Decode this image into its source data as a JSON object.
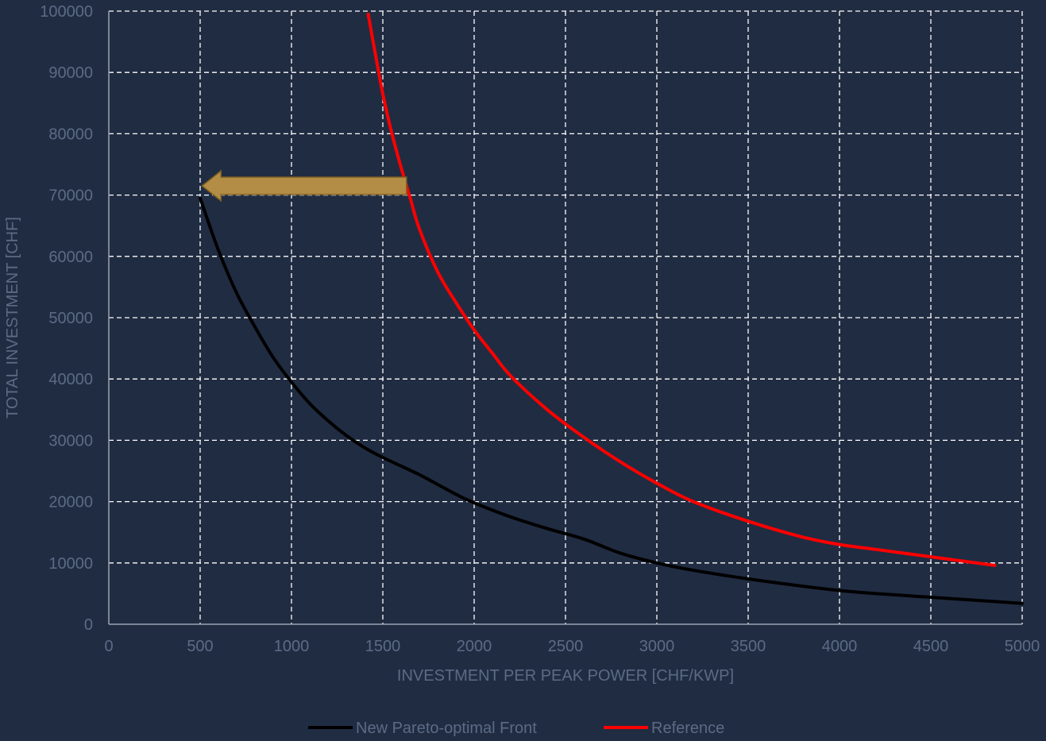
{
  "colors": {
    "background": "#202c42",
    "grid": "#ffffff",
    "axis": "#9aa3b1",
    "text": "#5b6b84",
    "series_black": "#000000",
    "series_red": "#ff0000",
    "arrow_fill": "#b38d45",
    "arrow_stroke": "#7a5c22"
  },
  "chart_data": {
    "type": "line",
    "title": "",
    "xlabel": "INVESTMENT PER PEAK POWER [CHF/KWP]",
    "ylabel": "TOTAL INVESTMENT [CHF]",
    "xlim": [
      0,
      5000
    ],
    "ylim": [
      0,
      100000
    ],
    "x_ticks": [
      0,
      500,
      1000,
      1500,
      2000,
      2500,
      3000,
      3500,
      4000,
      4500,
      5000
    ],
    "y_ticks": [
      0,
      10000,
      20000,
      30000,
      40000,
      50000,
      60000,
      70000,
      80000,
      90000,
      100000
    ],
    "x_tick_labels": [
      "0",
      "500",
      "1000",
      "1500",
      "2000",
      "2500",
      "3000",
      "3500",
      "4000",
      "4500",
      "5000"
    ],
    "y_tick_labels": [
      "0",
      "10000",
      "20000",
      "30000",
      "40000",
      "50000",
      "60000",
      "70000",
      "80000",
      "90000",
      "100000"
    ],
    "grid": true,
    "grid_style": "dashed",
    "legend_position": "bottom",
    "series": [
      {
        "name": "New Pareto-optimal Front",
        "color": "#000000",
        "x": [
          500,
          600,
          700,
          800,
          900,
          1000,
          1100,
          1200,
          1300,
          1400,
          1500,
          1600,
          1700,
          1800,
          1900,
          2000,
          2200,
          2400,
          2600,
          2800,
          3000,
          3200,
          3500,
          3800,
          4000,
          4200,
          4500,
          4800,
          5000
        ],
        "y": [
          69500,
          61000,
          54000,
          48500,
          43500,
          39500,
          36000,
          33200,
          30800,
          28800,
          27200,
          25800,
          24400,
          22800,
          21200,
          19800,
          17500,
          15600,
          13900,
          11600,
          10000,
          8800,
          7400,
          6200,
          5500,
          5000,
          4400,
          3800,
          3400
        ]
      },
      {
        "name": "Reference",
        "color": "#ff0000",
        "x": [
          1420,
          1450,
          1500,
          1550,
          1600,
          1650,
          1700,
          1800,
          1900,
          2000,
          2100,
          2200,
          2400,
          2600,
          2800,
          3000,
          3200,
          3500,
          3800,
          4000,
          4200,
          4500,
          4850
        ],
        "y": [
          99500,
          94500,
          86500,
          80000,
          74500,
          69500,
          64500,
          57500,
          52500,
          48000,
          44200,
          40500,
          35000,
          30500,
          26500,
          23000,
          20000,
          16800,
          14200,
          13000,
          12200,
          11000,
          9600
        ]
      }
    ],
    "annotations": [
      {
        "type": "arrow",
        "direction": "left",
        "color": "#b38d45",
        "x_start": 1630,
        "x_end": 510,
        "y": 71500
      }
    ]
  }
}
